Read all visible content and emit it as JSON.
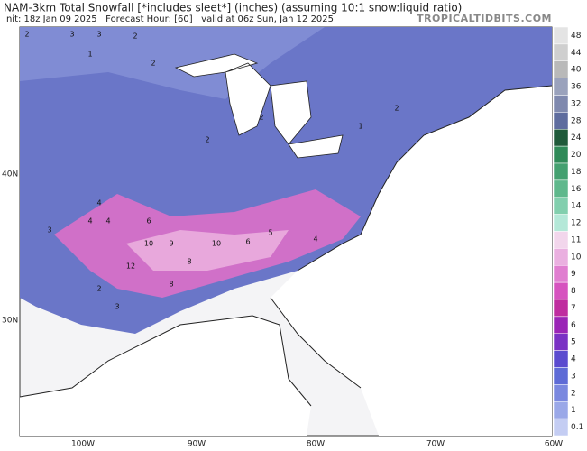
{
  "header": {
    "title": "NAM-3km Total Snowfall [*includes sleet*] (inches) (assuming 10:1 snow:liquid ratio)",
    "subtitle": "Init: 18z Jan 09 2025   Forecast Hour: [60]   valid at 06z Sun, Jan 12 2025",
    "site": "TROPICALTIDBITS.COM"
  },
  "axes": {
    "longitude": [
      "100W",
      "90W",
      "80W",
      "70W",
      "60W"
    ],
    "latitude": [
      "40N",
      "30N"
    ]
  },
  "colorbar": {
    "labels": [
      "48",
      "44",
      "40",
      "36",
      "32",
      "28",
      "24",
      "20",
      "18",
      "16",
      "14",
      "12",
      "11",
      "10",
      "9",
      "8",
      "7",
      "6",
      "5",
      "4",
      "3",
      "2",
      "1",
      "0.1"
    ],
    "colors": [
      "#e4e4e4",
      "#cfcfcf",
      "#b9b9b9",
      "#9aa2bc",
      "#7f89ae",
      "#5e6c9e",
      "#1f5a3a",
      "#2f8a58",
      "#44a070",
      "#5fb88c",
      "#82cfae",
      "#b4e8d8",
      "#f2d6ec",
      "#eab0e0",
      "#e07ed0",
      "#d653bf",
      "#bf2d9f",
      "#9a25b6",
      "#7a32c4",
      "#5b4bcf",
      "#5e6bd6",
      "#7a88df",
      "#9aa8e8",
      "#c4cdf3"
    ]
  },
  "map_labels": [
    "2",
    "3",
    "3",
    "2",
    "1",
    "2",
    "2",
    "2",
    "4",
    "4",
    "3",
    "4",
    "6",
    "10",
    "9",
    "10",
    "8",
    "6",
    "5",
    "4",
    "12",
    "8",
    "2",
    "3",
    "1",
    "2"
  ]
}
